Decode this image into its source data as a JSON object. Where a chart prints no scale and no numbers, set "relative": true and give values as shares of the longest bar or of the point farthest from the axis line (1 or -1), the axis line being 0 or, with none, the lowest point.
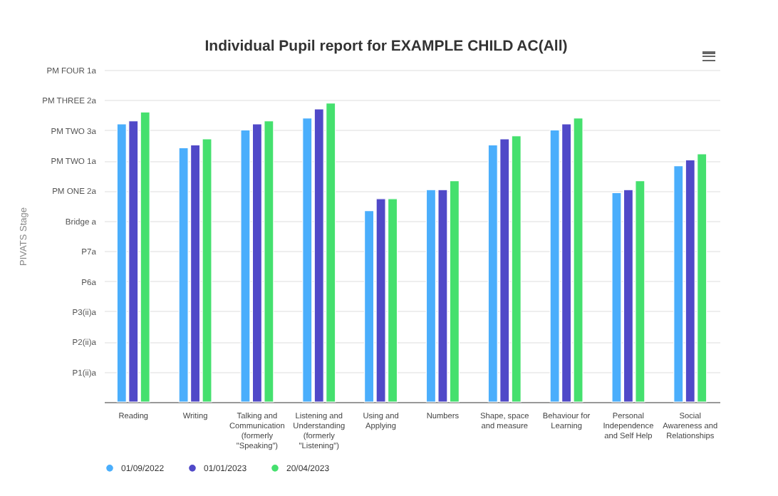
{
  "chart_data": {
    "type": "bar",
    "title": "Individual Pupil report for EXAMPLE CHILD AC(All)",
    "relative": true,
    "categories": [
      "Reading",
      "Writing",
      "Talking and Communication (formerly \"Speaking\")",
      "Listening and Understanding (formerly \"Listening\")",
      "Using and Applying",
      "Numbers",
      "Shape, space and measure",
      "Behaviour for Learning",
      "Personal Independence and Self Help",
      "Social Awareness and Relationships"
    ],
    "series": [
      {
        "name": "01/09/2022",
        "color": "#4aaefc",
        "values": [
          0.93,
          0.85,
          0.91,
          0.95,
          0.64,
          0.71,
          0.86,
          0.91,
          0.7,
          0.79
        ]
      },
      {
        "name": "01/01/2023",
        "color": "#5049c8",
        "values": [
          0.94,
          0.86,
          0.93,
          0.98,
          0.68,
          0.71,
          0.88,
          0.93,
          0.71,
          0.81
        ]
      },
      {
        "name": "20/04/2023",
        "color": "#45e06e",
        "values": [
          0.97,
          0.88,
          0.94,
          1,
          0.68,
          0.74,
          0.89,
          0.95,
          0.74,
          0.83
        ]
      }
    ],
    "annotations": [
      "P1(ii)a",
      "P2(ii)a",
      "P3(ii)a",
      "P6a",
      "P7a",
      "Bridge a",
      "PM ONE 2a",
      "PM TWO 1a",
      "PM TWO 3a",
      "PM THREE 2a",
      "PM FOUR 1a",
      "PIVATS Stage"
    ],
    "grid": "y",
    "legend": "bottom"
  }
}
